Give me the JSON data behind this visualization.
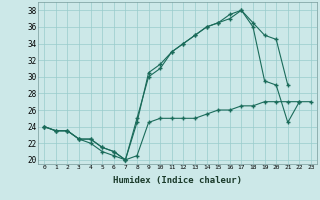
{
  "xlabel": "Humidex (Indice chaleur)",
  "bg_color": "#cce8e8",
  "line_color": "#1a6b5a",
  "grid_color": "#99cccc",
  "xlim": [
    -0.5,
    23.5
  ],
  "ylim": [
    19.5,
    39
  ],
  "yticks": [
    20,
    22,
    24,
    26,
    28,
    30,
    32,
    34,
    36,
    38
  ],
  "xticks": [
    0,
    1,
    2,
    3,
    4,
    5,
    6,
    7,
    8,
    9,
    10,
    11,
    12,
    13,
    14,
    15,
    16,
    17,
    18,
    19,
    20,
    21,
    22,
    23
  ],
  "series1_x": [
    0,
    1,
    2,
    3,
    4,
    5,
    6,
    7,
    8,
    9,
    10,
    11,
    12,
    13,
    14,
    15,
    16,
    17,
    18,
    19,
    20,
    21,
    22,
    23
  ],
  "series1_y": [
    24,
    23.5,
    23.5,
    22.5,
    22,
    21,
    20.5,
    20,
    20.5,
    24.5,
    25,
    25,
    25,
    25,
    25.5,
    26,
    26,
    26.5,
    26.5,
    27,
    27,
    27,
    27,
    27
  ],
  "series2_x": [
    0,
    1,
    2,
    3,
    4,
    5,
    6,
    7,
    8,
    9,
    10,
    11,
    12,
    13,
    14,
    15,
    16,
    17,
    18,
    19,
    20,
    21,
    22
  ],
  "series2_y": [
    24,
    23.5,
    23.5,
    22.5,
    22.5,
    21.5,
    21,
    20,
    24.5,
    30.5,
    31.5,
    33,
    34,
    35,
    36,
    36.5,
    37.5,
    38,
    36,
    29.5,
    29,
    24.5,
    27
  ],
  "series3_x": [
    0,
    1,
    2,
    3,
    4,
    5,
    6,
    7,
    8,
    9,
    10,
    11,
    12,
    13,
    14,
    15,
    16,
    17,
    18,
    19,
    20,
    21
  ],
  "series3_y": [
    24,
    23.5,
    23.5,
    22.5,
    22.5,
    21.5,
    21,
    20,
    25,
    30,
    31,
    33,
    34,
    35,
    36,
    36.5,
    37,
    38,
    36.5,
    35,
    34.5,
    29
  ]
}
